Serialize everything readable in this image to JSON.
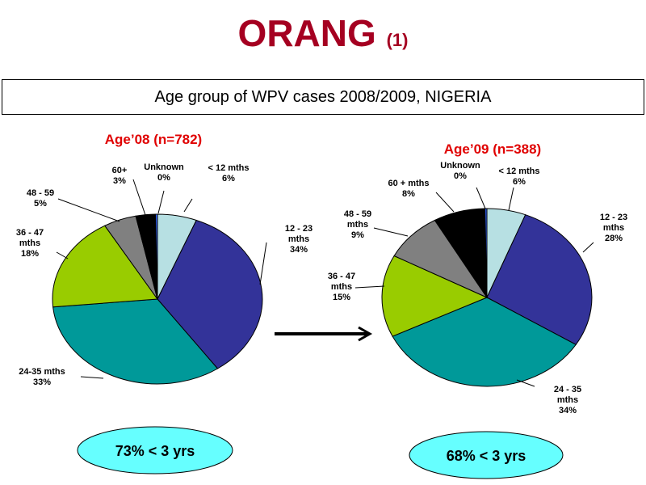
{
  "slide": {
    "title": "ORANG",
    "title_suffix": "(1)",
    "subtitle": "Age group of WPV cases  2008/2009, NIGERIA"
  },
  "colors": {
    "title": "#a50021",
    "chart_title": "#e00000",
    "callout_fill": "#66ffff"
  },
  "summaries": [
    "73% < 3 yrs",
    "68% < 3 yrs"
  ],
  "chart_data": [
    {
      "type": "pie",
      "title": "Age’08 (n=782)",
      "slices": [
        {
          "label": [
            "< 12 mths",
            "6%"
          ],
          "value": 6,
          "color": "#b7e0e3"
        },
        {
          "label": [
            "12 - 23",
            "mths",
            "34%"
          ],
          "value": 34,
          "color": "#333399"
        },
        {
          "label": [
            "24-35 mths",
            "33%"
          ],
          "value": 33,
          "color": "#009999"
        },
        {
          "label": [
            "36 - 47",
            "mths",
            "18%"
          ],
          "value": 18,
          "color": "#99cc00"
        },
        {
          "label": [
            "48 - 59",
            "5%"
          ],
          "value": 5,
          "color": "#808080"
        },
        {
          "label": [
            "60+",
            "3%"
          ],
          "value": 3,
          "color": "#000000"
        },
        {
          "label": [
            "Unknown",
            "0%"
          ],
          "value": 0.3,
          "color": "#3366ff"
        }
      ]
    },
    {
      "type": "pie",
      "title": "Age’09 (n=388)",
      "slices": [
        {
          "label": [
            "< 12 mths",
            "6%"
          ],
          "value": 6,
          "color": "#b7e0e3"
        },
        {
          "label": [
            "12 - 23",
            "mths",
            "28%"
          ],
          "value": 28,
          "color": "#333399"
        },
        {
          "label": [
            "24 - 35",
            "mths",
            "34%"
          ],
          "value": 34,
          "color": "#009999"
        },
        {
          "label": [
            "36 - 47",
            "mths",
            "15%"
          ],
          "value": 15,
          "color": "#99cc00"
        },
        {
          "label": [
            "48 - 59",
            "mths",
            "9%"
          ],
          "value": 9,
          "color": "#808080"
        },
        {
          "label": [
            "60 + mths",
            "8%"
          ],
          "value": 8,
          "color": "#000000"
        },
        {
          "label": [
            "Unknown",
            "0%"
          ],
          "value": 0.3,
          "color": "#3366ff"
        }
      ]
    }
  ]
}
